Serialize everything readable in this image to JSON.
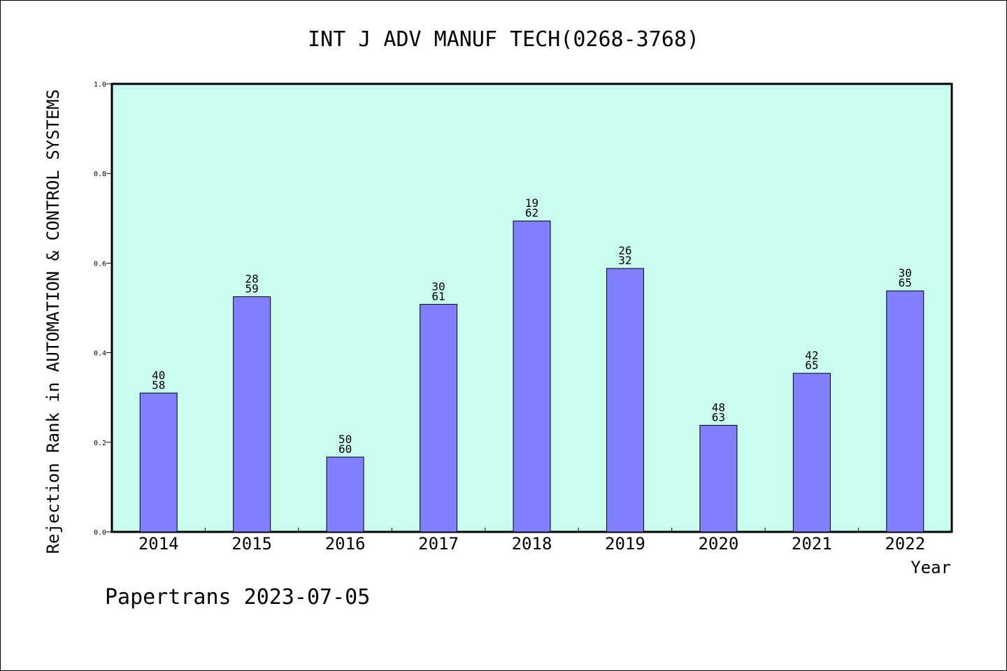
{
  "chart_data": {
    "type": "bar",
    "title": "INT J ADV MANUF TECH(0268-3768)",
    "ylabel": "Rejection Rank in AUTOMATION & CONTROL SYSTEMS",
    "xlabel": "Year",
    "footer": "Papertrans 2023-07-05",
    "ylim": [
      0,
      1.0
    ],
    "yticks": [
      "0.0",
      "0.2",
      "0.4",
      "0.6",
      "0.8",
      "1.0"
    ],
    "categories": [
      "2014",
      "2015",
      "2016",
      "2017",
      "2018",
      "2019",
      "2020",
      "2021",
      "2022"
    ],
    "values": [
      0.31,
      0.525,
      0.167,
      0.508,
      0.694,
      0.588,
      0.238,
      0.354,
      0.538
    ],
    "labels_top": [
      "40",
      "28",
      "50",
      "30",
      "19",
      "26",
      "48",
      "42",
      "30"
    ],
    "labels_bottom": [
      "58",
      "59",
      "60",
      "61",
      "62",
      "32",
      "63",
      "65",
      "65"
    ],
    "colors": {
      "plot_background": "#c8fdf0",
      "bar_fill": "#8080ff",
      "bar_stroke": "#000000"
    },
    "grid": false,
    "legend": "none"
  }
}
